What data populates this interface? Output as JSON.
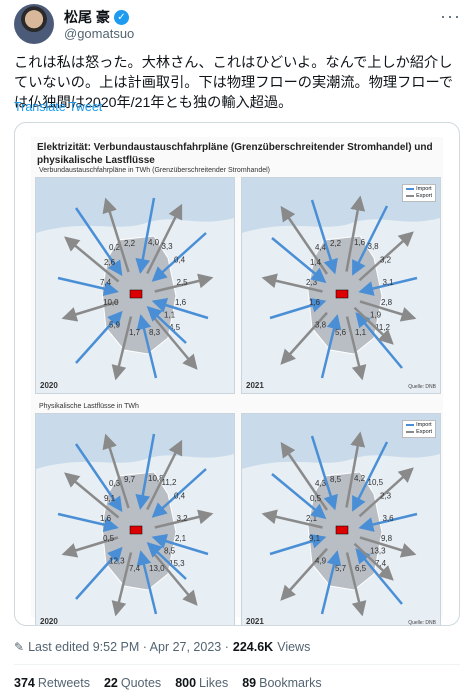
{
  "user": {
    "display_name": "松尾 豪",
    "handle": "@gomatsuo"
  },
  "tweet": {
    "text": "これは私は怒った。大林さん、これはひどいよ。なんで上しか紹介していないの。上は計画取引。下は物理フローの実潮流。物理フローでは仏独間は2020年/21年とも独の輸入超過。",
    "translate_label": "Translate Tweet"
  },
  "figure": {
    "title": "Elektrizität: Verbundaustauschfahrpläne (Grenzüberschreitender Stromhandel) und physikalische Lastflüsse",
    "section_top": "Verbundaustauschfahrpläne in TWh (Grenzüberschreitender Stromhandel)",
    "section_bottom": "Physikalische Lastflüsse in TWh",
    "legend": {
      "import": "Import",
      "export": "Export",
      "import_color": "#4a8fd6",
      "export_color": "#8a8a8a"
    },
    "source": "Quelle: DNB",
    "maps": [
      {
        "year": "2020",
        "labels": [
          "0,2",
          "2,2",
          "4,0",
          "3,3",
          "0,4",
          "2,5",
          "1,6",
          "4,5",
          "8,3",
          "1,7",
          "5,9",
          "10,0",
          "7,4",
          "2,6",
          "1,1"
        ]
      },
      {
        "year": "2021",
        "labels": [
          "4,4",
          "2,2",
          "1,6",
          "3,8",
          "3,2",
          "3,1",
          "2,8",
          "11,2",
          "1,1",
          "5,6",
          "3,8",
          "1,6",
          "2,3",
          "1,4",
          "1,9"
        ]
      },
      {
        "year": "2020",
        "labels": [
          "0,3",
          "9,7",
          "10,8",
          "11,2",
          "0,4",
          "3,2",
          "2,1",
          "15,3",
          "13,0",
          "7,4",
          "12,3",
          "0,5",
          "1,6",
          "9,1",
          "8,5"
        ]
      },
      {
        "year": "2021",
        "labels": [
          "4,3",
          "8,5",
          "4,2",
          "10,5",
          "2,3",
          "3,6",
          "9,8",
          "7,4",
          "6,5",
          "5,7",
          "4,9",
          "9,1",
          "2,1",
          "0,5",
          "13,3"
        ]
      }
    ]
  },
  "meta": {
    "last_edited": "Last edited 9:52 PM · Apr 27, 2023 · ",
    "views_count": "224.6K",
    "views_label": " Views"
  },
  "stats": [
    {
      "count": "374",
      "label": "Retweets"
    },
    {
      "count": "22",
      "label": "Quotes"
    },
    {
      "count": "800",
      "label": "Likes"
    },
    {
      "count": "89",
      "label": "Bookmarks"
    }
  ]
}
